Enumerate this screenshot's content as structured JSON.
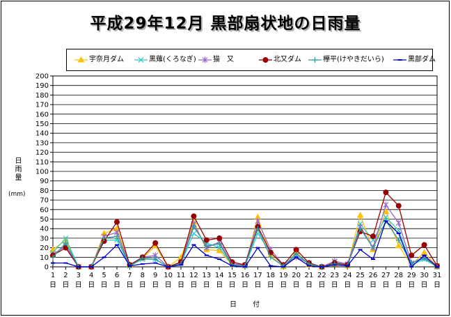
{
  "title": "平成29年12月 黒部扇状地の日雨量",
  "ylabel": "日雨量",
  "yunit": "(mm)",
  "xlabel": "日 付",
  "colors": {
    "uno": "#FFC000",
    "kurona": "#33CCCC",
    "neko": "#9966CC",
    "kitamata": "#990000",
    "keyaki": "#339999",
    "kurobe": "#0000CC"
  },
  "chart_data": {
    "type": "line",
    "x": [
      1,
      2,
      3,
      4,
      5,
      6,
      7,
      8,
      9,
      10,
      11,
      12,
      13,
      14,
      15,
      16,
      17,
      18,
      19,
      20,
      21,
      22,
      23,
      24,
      25,
      26,
      27,
      28,
      29,
      30,
      31
    ],
    "x_tick_labels": [
      "1\n日",
      "2\n日",
      "3\n日",
      "4\n日",
      "5\n日",
      "6\n日",
      "7\n日",
      "8\n日",
      "9\n日",
      "10\n日",
      "11\n日",
      "12\n日",
      "13\n日",
      "14\n日",
      "15\n日",
      "16\n日",
      "17\n日",
      "18\n日",
      "19\n日",
      "20\n日",
      "21\n日",
      "22\n日",
      "23\n日",
      "24\n日",
      "25\n日",
      "26\n日",
      "27\n日",
      "28\n日",
      "29\n日",
      "30\n日",
      "31\n日"
    ],
    "ylim": [
      0,
      200
    ],
    "yticks": [
      0,
      10,
      20,
      30,
      40,
      50,
      60,
      70,
      80,
      90,
      100,
      110,
      120,
      130,
      140,
      150,
      160,
      170,
      180,
      190,
      200
    ],
    "grid": true,
    "legend_position": "top",
    "series": [
      {
        "name": "宇奈月ダム",
        "color_key": "uno",
        "marker": "triangle",
        "values": [
          18,
          28,
          0,
          0,
          35,
          40,
          2,
          9,
          22,
          0,
          10,
          47,
          18,
          17,
          2,
          1,
          52,
          12,
          0,
          15,
          2,
          0,
          3,
          1,
          54,
          18,
          58,
          22,
          2,
          15,
          0
        ]
      },
      {
        "name": "黒薙(くろなぎ)",
        "color_key": "kurona",
        "marker": "x",
        "values": [
          15,
          30,
          0,
          0,
          28,
          28,
          1,
          8,
          8,
          0,
          4,
          35,
          25,
          20,
          2,
          1,
          35,
          15,
          1,
          12,
          3,
          0,
          5,
          2,
          45,
          28,
          52,
          38,
          2,
          8,
          0
        ]
      },
      {
        "name": "猫　又",
        "color_key": "neko",
        "marker": "star",
        "values": [
          13,
          22,
          0,
          0,
          32,
          36,
          2,
          10,
          12,
          0,
          5,
          45,
          20,
          26,
          3,
          2,
          48,
          18,
          2,
          10,
          4,
          0,
          6,
          3,
          42,
          20,
          65,
          46,
          4,
          10,
          1
        ]
      },
      {
        "name": "北又ダム",
        "color_key": "kitamata",
        "marker": "circle",
        "values": [
          12,
          20,
          0,
          0,
          27,
          47,
          2,
          10,
          25,
          0,
          5,
          53,
          28,
          30,
          5,
          2,
          42,
          15,
          2,
          18,
          4,
          0,
          4,
          2,
          37,
          32,
          78,
          64,
          12,
          23,
          1
        ]
      },
      {
        "name": "欅平(けやきだいら)",
        "color_key": "keyaki",
        "marker": "plus",
        "values": [
          10,
          25,
          0,
          0,
          30,
          32,
          1,
          9,
          8,
          0,
          3,
          42,
          22,
          24,
          2,
          1,
          40,
          10,
          1,
          14,
          3,
          0,
          3,
          1,
          40,
          20,
          48,
          28,
          4,
          9,
          0
        ]
      },
      {
        "name": "黒部ダム",
        "color_key": "kurobe",
        "marker": "dash",
        "values": [
          4,
          4,
          0,
          0,
          10,
          23,
          1,
          3,
          4,
          0,
          2,
          23,
          12,
          8,
          1,
          0,
          20,
          1,
          0,
          10,
          1,
          0,
          2,
          1,
          18,
          8,
          48,
          35,
          0,
          12,
          0
        ]
      }
    ]
  }
}
